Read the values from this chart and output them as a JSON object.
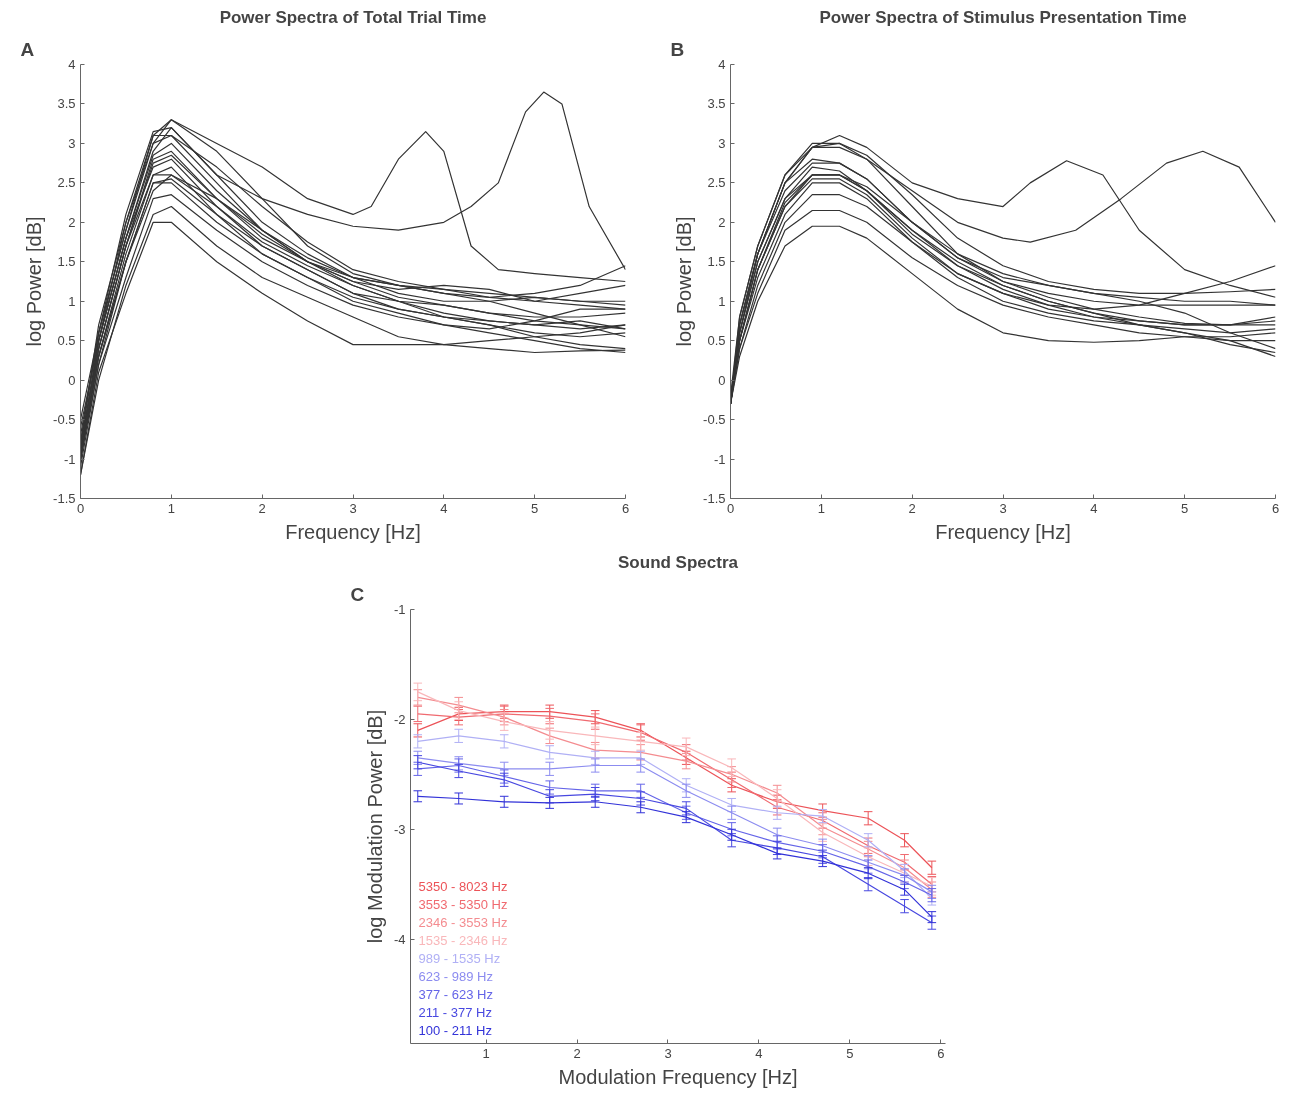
{
  "chart_data": [
    {
      "type": "line",
      "title": "Power Spectra of Total Trial Time",
      "xlabel": "Frequency [Hz]",
      "ylabel": "log Power [dB]",
      "annotations": [
        "A"
      ],
      "xlim": [
        0,
        6
      ],
      "ylim": [
        -1.5,
        4
      ],
      "xticks": [
        0,
        1,
        2,
        3,
        4,
        5,
        6
      ],
      "yticks": [
        -1.5,
        -1,
        -0.5,
        0,
        0.5,
        1,
        1.5,
        2,
        2.5,
        3,
        3.5,
        4
      ],
      "grid": false,
      "legend": false,
      "x": [
        0,
        0.2,
        0.5,
        0.8,
        1,
        1.5,
        2,
        2.5,
        3,
        3.5,
        4,
        4.5,
        5,
        5.5,
        6
      ],
      "series": [
        {
          "color": "#333333",
          "x": [
            0,
            0.2,
            0.5,
            0.8,
            1,
            1.5,
            2,
            2.5,
            3,
            3.2,
            3.5,
            3.8,
            4.0,
            4.3,
            4.6,
            5,
            5.5,
            6
          ],
          "values": [
            -0.6,
            0.5,
            2.0,
            3.1,
            3.3,
            3.0,
            2.7,
            2.3,
            2.1,
            2.2,
            2.8,
            3.15,
            2.9,
            1.7,
            1.4,
            1.35,
            1.3,
            1.25
          ]
        },
        {
          "color": "#333333",
          "x": [
            0,
            0.2,
            0.5,
            0.8,
            1,
            1.5,
            2,
            2.5,
            3,
            3.5,
            4,
            4.3,
            4.6,
            4.9,
            5.1,
            5.3,
            5.6,
            6
          ],
          "values": [
            -0.5,
            0.6,
            2.1,
            3.15,
            3.2,
            2.6,
            2.3,
            2.1,
            1.95,
            1.9,
            2.0,
            2.2,
            2.5,
            3.4,
            3.65,
            3.5,
            2.2,
            1.4
          ]
        },
        {
          "color": "#333333",
          "values": [
            -0.8,
            0.7,
            2.0,
            3.0,
            3.3,
            2.9,
            2.3,
            1.7,
            1.35,
            1.2,
            1.15,
            1.1,
            1.05,
            1.0,
            0.95
          ]
        },
        {
          "color": "#333333",
          "values": [
            -0.9,
            0.5,
            1.8,
            2.9,
            3.2,
            2.6,
            2.0,
            1.6,
            1.3,
            1.2,
            1.1,
            1.05,
            1.1,
            1.2,
            1.45
          ]
        },
        {
          "color": "#333333",
          "values": [
            -0.7,
            0.6,
            1.9,
            3.1,
            3.1,
            2.5,
            1.9,
            1.5,
            1.25,
            1.15,
            1.2,
            1.15,
            1.0,
            0.95,
            0.9
          ]
        },
        {
          "color": "#333333",
          "values": [
            -1.0,
            0.4,
            1.7,
            2.8,
            2.9,
            2.3,
            1.8,
            1.5,
            1.3,
            1.1,
            1.0,
            1.0,
            1.05,
            1.0,
            1.0
          ]
        },
        {
          "color": "#333333",
          "values": [
            -0.9,
            0.5,
            1.8,
            2.7,
            2.8,
            2.2,
            1.7,
            1.4,
            1.1,
            1.0,
            0.95,
            0.85,
            0.8,
            0.8,
            0.85
          ]
        },
        {
          "color": "#333333",
          "values": [
            -1.0,
            0.3,
            1.6,
            2.6,
            2.7,
            2.1,
            1.6,
            1.3,
            1.05,
            0.9,
            0.8,
            0.75,
            0.7,
            0.65,
            0.7
          ]
        },
        {
          "color": "#333333",
          "values": [
            -0.8,
            0.4,
            1.7,
            2.6,
            2.6,
            2.2,
            1.75,
            1.45,
            1.2,
            1.0,
            0.85,
            0.75,
            0.7,
            0.75,
            0.65
          ]
        },
        {
          "color": "#333333",
          "values": [
            -1.0,
            0.3,
            1.5,
            2.5,
            2.55,
            2.1,
            1.7,
            1.4,
            1.1,
            0.9,
            0.8,
            0.7,
            0.6,
            0.55,
            0.6
          ]
        },
        {
          "color": "#333333",
          "values": [
            -1.1,
            0.2,
            1.5,
            2.5,
            2.5,
            2.0,
            1.6,
            1.3,
            1.0,
            0.85,
            0.7,
            0.65,
            0.75,
            0.9,
            0.9
          ]
        },
        {
          "color": "#333333",
          "values": [
            -0.9,
            0.3,
            1.5,
            2.4,
            2.6,
            2.3,
            1.9,
            1.5,
            1.2,
            1.0,
            0.8,
            0.7,
            0.55,
            0.45,
            0.4
          ]
        },
        {
          "color": "#333333",
          "values": [
            -1.0,
            0.2,
            1.3,
            2.3,
            2.35,
            1.9,
            1.5,
            1.2,
            0.95,
            0.8,
            0.7,
            0.6,
            0.5,
            0.4,
            0.35
          ]
        },
        {
          "color": "#333333",
          "values": [
            -1.2,
            0.0,
            1.2,
            2.1,
            2.2,
            1.7,
            1.3,
            1.05,
            0.8,
            0.55,
            0.45,
            0.4,
            0.35,
            0.37,
            0.38
          ]
        },
        {
          "color": "#333333",
          "values": [
            -1.2,
            0.1,
            1.1,
            2.0,
            2.0,
            1.5,
            1.1,
            0.75,
            0.45,
            0.45,
            0.45,
            0.5,
            0.55,
            0.6,
            0.7
          ]
        },
        {
          "color": "#333333",
          "values": [
            -0.9,
            0.5,
            1.8,
            2.85,
            3.0,
            2.4,
            1.9,
            1.55,
            1.3,
            1.2,
            1.1,
            1.0,
            0.85,
            0.7,
            0.55
          ]
        },
        {
          "color": "#333333",
          "values": [
            -0.8,
            0.6,
            1.9,
            3.0,
            3.1,
            2.7,
            2.2,
            1.75,
            1.4,
            1.25,
            1.15,
            1.05,
            1.0,
            1.1,
            1.2
          ]
        },
        {
          "color": "#333333",
          "values": [
            -1.0,
            0.4,
            1.7,
            2.75,
            2.85,
            2.3,
            1.85,
            1.5,
            1.25,
            1.05,
            0.95,
            0.85,
            0.75,
            0.7,
            0.65
          ]
        }
      ]
    },
    {
      "type": "line",
      "title": "Power Spectra of Stimulus Presentation Time",
      "xlabel": "Frequency [Hz]",
      "ylabel": "log Power [dB]",
      "annotations": [
        "B"
      ],
      "xlim": [
        0,
        6
      ],
      "ylim": [
        -1.5,
        4
      ],
      "xticks": [
        0,
        1,
        2,
        3,
        4,
        5,
        6
      ],
      "yticks": [
        -1.5,
        -1,
        -0.5,
        0,
        0.5,
        1,
        1.5,
        2,
        2.5,
        3,
        3.5,
        4
      ],
      "grid": false,
      "legend": false,
      "x": [
        0,
        0.1,
        0.3,
        0.6,
        0.9,
        1.2,
        1.5,
        2,
        2.5,
        3,
        3.5,
        4,
        4.5,
        5,
        5.5,
        6
      ],
      "series": [
        {
          "color": "#333333",
          "x": [
            0,
            0.1,
            0.3,
            0.6,
            0.9,
            1.2,
            1.5,
            2,
            2.5,
            3,
            3.3,
            3.7,
            4.1,
            4.5,
            5,
            5.5,
            6
          ],
          "values": [
            -0.3,
            0.7,
            1.6,
            2.5,
            2.95,
            3.1,
            2.95,
            2.5,
            2.3,
            2.2,
            2.5,
            2.78,
            2.6,
            1.9,
            1.4,
            1.2,
            1.05
          ]
        },
        {
          "color": "#333333",
          "x": [
            0,
            0.1,
            0.3,
            0.6,
            0.9,
            1.2,
            1.5,
            2,
            2.5,
            3,
            3.3,
            3.8,
            4.3,
            4.8,
            5.2,
            5.6,
            6
          ],
          "values": [
            -0.3,
            0.8,
            1.7,
            2.6,
            2.95,
            2.95,
            2.8,
            2.4,
            2.0,
            1.8,
            1.75,
            1.9,
            2.3,
            2.75,
            2.9,
            2.7,
            2.0
          ]
        },
        {
          "color": "#333333",
          "values": [
            -0.2,
            0.8,
            1.7,
            2.6,
            3.0,
            3.0,
            2.8,
            2.2,
            1.6,
            1.25,
            1.1,
            1.0,
            0.95,
            0.95,
            0.95,
            0.95
          ]
        },
        {
          "color": "#333333",
          "values": [
            -0.3,
            0.7,
            1.6,
            2.4,
            2.75,
            2.75,
            2.55,
            2.0,
            1.55,
            1.3,
            1.2,
            1.1,
            1.05,
            1.0,
            1.0,
            0.95
          ]
        },
        {
          "color": "#333333",
          "values": [
            -0.3,
            0.6,
            1.5,
            2.3,
            2.7,
            2.65,
            2.4,
            1.85,
            1.45,
            1.2,
            1.0,
            0.85,
            0.75,
            0.7,
            0.7,
            0.8
          ]
        },
        {
          "color": "#333333",
          "values": [
            -0.3,
            0.6,
            1.5,
            2.3,
            2.6,
            2.6,
            2.4,
            1.9,
            1.5,
            1.2,
            1.0,
            0.85,
            0.7,
            0.6,
            0.45,
            0.35
          ]
        },
        {
          "color": "#333333",
          "values": [
            -0.3,
            0.5,
            1.4,
            2.2,
            2.55,
            2.55,
            2.35,
            1.8,
            1.35,
            1.1,
            0.9,
            0.8,
            0.75,
            0.7,
            0.7,
            0.75
          ]
        },
        {
          "color": "#333333",
          "values": [
            -0.3,
            0.5,
            1.3,
            2.1,
            2.5,
            2.5,
            2.3,
            1.75,
            1.3,
            1.0,
            0.85,
            0.75,
            0.7,
            0.65,
            0.6,
            0.65
          ]
        },
        {
          "color": "#333333",
          "values": [
            -0.3,
            0.4,
            1.2,
            2.0,
            2.35,
            2.35,
            2.2,
            1.75,
            1.35,
            1.1,
            0.95,
            0.9,
            0.95,
            1.1,
            1.25,
            1.45
          ]
        },
        {
          "color": "#333333",
          "values": [
            -0.3,
            0.4,
            1.1,
            1.9,
            2.15,
            2.15,
            2.0,
            1.55,
            1.2,
            0.95,
            0.8,
            0.7,
            0.6,
            0.55,
            0.5,
            0.5
          ]
        },
        {
          "color": "#333333",
          "values": [
            -0.3,
            0.3,
            1.0,
            1.7,
            1.95,
            1.95,
            1.8,
            1.35,
            0.9,
            0.6,
            0.5,
            0.48,
            0.5,
            0.55,
            0.55,
            0.6
          ]
        },
        {
          "color": "#333333",
          "values": [
            -0.3,
            0.6,
            1.6,
            2.5,
            2.8,
            2.75,
            2.55,
            2.0,
            1.6,
            1.35,
            1.2,
            1.1,
            1.0,
            0.85,
            0.6,
            0.4
          ]
        },
        {
          "color": "#333333",
          "values": [
            -0.3,
            0.7,
            1.6,
            2.5,
            2.95,
            3.0,
            2.85,
            2.35,
            1.8,
            1.45,
            1.25,
            1.15,
            1.1,
            1.1,
            1.12,
            1.15
          ]
        },
        {
          "color": "#333333",
          "values": [
            -0.3,
            0.5,
            1.4,
            2.2,
            2.6,
            2.6,
            2.45,
            2.0,
            1.55,
            1.25,
            1.05,
            0.9,
            0.8,
            0.72,
            0.7,
            0.7
          ]
        },
        {
          "color": "#333333",
          "values": [
            -0.3,
            0.5,
            1.4,
            2.25,
            2.6,
            2.6,
            2.4,
            1.9,
            1.45,
            1.15,
            0.95,
            0.8,
            0.7,
            0.6,
            0.5,
            0.3
          ]
        }
      ]
    },
    {
      "type": "line",
      "title": "Sound Spectra",
      "xlabel": "Modulation Frequency [Hz]",
      "ylabel": "log Modulation Power [dB]",
      "annotations": [
        "C"
      ],
      "xlim": [
        0.17,
        6.05
      ],
      "ylim": [
        -4.95,
        -1
      ],
      "xticks": [
        1,
        2,
        3,
        4,
        5,
        6
      ],
      "yticks": [
        -4,
        -3,
        -2,
        -1
      ],
      "grid": false,
      "legend": "bottom left",
      "x": [
        0.25,
        0.7,
        1.2,
        1.7,
        2.2,
        2.7,
        3.2,
        3.7,
        4.2,
        4.7,
        5.2,
        5.6,
        5.9
      ],
      "series": [
        {
          "name": "5350 - 8023 Hz",
          "color": "#ec5358",
          "values": [
            -2.1,
            -1.95,
            -1.93,
            -1.93,
            -1.98,
            -2.1,
            -2.35,
            -2.6,
            -2.75,
            -2.83,
            -2.9,
            -3.1,
            -3.35
          ],
          "errors": [
            0.06,
            0.06,
            0.06,
            0.06,
            0.06,
            0.06,
            0.06,
            0.06,
            0.06,
            0.06,
            0.06,
            0.06,
            0.06
          ]
        },
        {
          "name": "3553 - 5350 Hz",
          "color": "#f06a70",
          "values": [
            -1.95,
            -1.98,
            -1.95,
            -1.97,
            -2.02,
            -2.12,
            -2.3,
            -2.55,
            -2.8,
            -2.92,
            -3.15,
            -3.3,
            -3.5
          ],
          "errors": [
            0.07,
            0.07,
            0.07,
            0.07,
            0.07,
            0.07,
            0.07,
            0.07,
            0.07,
            0.07,
            0.07,
            0.07,
            0.07
          ]
        },
        {
          "name": "2346 - 3553 Hz",
          "color": "#f48c90",
          "values": [
            -1.8,
            -1.87,
            -1.98,
            -2.15,
            -2.28,
            -2.3,
            -2.38,
            -2.5,
            -2.67,
            -2.98,
            -3.18,
            -3.35,
            -3.55
          ],
          "errors": [
            0.07,
            0.07,
            0.07,
            0.07,
            0.07,
            0.07,
            0.07,
            0.07,
            0.07,
            0.07,
            0.07,
            0.07,
            0.07
          ]
        },
        {
          "name": "1535 - 2346 Hz",
          "color": "#f9b7ba",
          "values": [
            -1.75,
            -1.92,
            -2.02,
            -2.1,
            -2.15,
            -2.2,
            -2.25,
            -2.44,
            -2.72,
            -3.03,
            -3.25,
            -3.4,
            -3.52
          ],
          "errors": [
            0.08,
            0.08,
            0.08,
            0.08,
            0.08,
            0.08,
            0.08,
            0.08,
            0.08,
            0.08,
            0.08,
            0.08,
            0.08
          ]
        },
        {
          "name": "989 - 1535 Hz",
          "color": "#b0b0f5",
          "values": [
            -2.2,
            -2.15,
            -2.2,
            -2.3,
            -2.35,
            -2.35,
            -2.6,
            -2.78,
            -2.85,
            -2.88,
            -3.1,
            -3.38,
            -3.63
          ],
          "errors": [
            0.06,
            0.06,
            0.06,
            0.06,
            0.06,
            0.06,
            0.06,
            0.06,
            0.06,
            0.06,
            0.06,
            0.06,
            0.06
          ]
        },
        {
          "name": "623 - 989 Hz",
          "color": "#8c8cf0",
          "values": [
            -2.35,
            -2.4,
            -2.45,
            -2.45,
            -2.42,
            -2.42,
            -2.65,
            -2.85,
            -3.05,
            -3.15,
            -3.3,
            -3.42,
            -3.57
          ],
          "errors": [
            0.06,
            0.06,
            0.06,
            0.06,
            0.06,
            0.06,
            0.06,
            0.06,
            0.06,
            0.06,
            0.06,
            0.06,
            0.06
          ]
        },
        {
          "name": "377 - 623 Hz",
          "color": "#6464e8",
          "values": [
            -2.45,
            -2.42,
            -2.52,
            -2.62,
            -2.65,
            -2.65,
            -2.85,
            -3.0,
            -3.12,
            -3.2,
            -3.34,
            -3.48,
            -3.6
          ],
          "errors": [
            0.06,
            0.06,
            0.06,
            0.06,
            0.06,
            0.06,
            0.06,
            0.06,
            0.06,
            0.06,
            0.06,
            0.06,
            0.06
          ]
        },
        {
          "name": "211 - 377 Hz",
          "color": "#4848e0",
          "values": [
            -2.39,
            -2.47,
            -2.55,
            -2.7,
            -2.68,
            -2.72,
            -2.81,
            -3.1,
            -3.17,
            -3.25,
            -3.5,
            -3.7,
            -3.85
          ],
          "errors": [
            0.06,
            0.06,
            0.06,
            0.06,
            0.06,
            0.06,
            0.06,
            0.06,
            0.06,
            0.06,
            0.06,
            0.06,
            0.06
          ]
        },
        {
          "name": "100 - 211 Hz",
          "color": "#3232d8",
          "values": [
            -2.7,
            -2.72,
            -2.75,
            -2.76,
            -2.75,
            -2.8,
            -2.89,
            -3.05,
            -3.22,
            -3.29,
            -3.4,
            -3.55,
            -3.8
          ],
          "errors": [
            0.05,
            0.05,
            0.05,
            0.05,
            0.05,
            0.05,
            0.05,
            0.05,
            0.05,
            0.05,
            0.05,
            0.05,
            0.05
          ]
        }
      ]
    }
  ]
}
